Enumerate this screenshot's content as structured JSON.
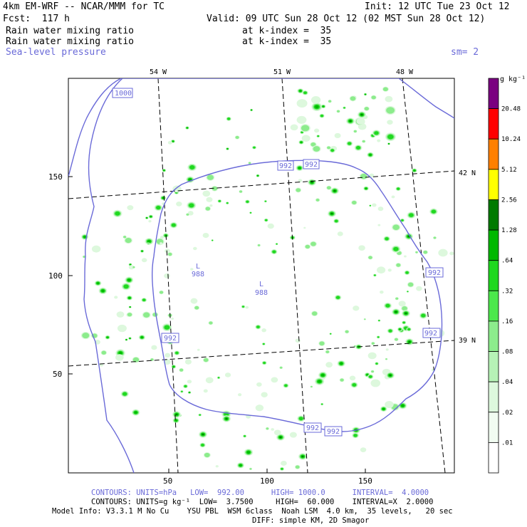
{
  "header": {
    "model": "4km EM-WRF -- NCAR/MMM for TC",
    "init": "Init: 12 UTC Tue 23 Oct 12",
    "fcst": "Fcst:  117 h",
    "valid": "Valid: 09 UTC Sun 28 Oct 12 (02 MST Sun 28 Oct 12)",
    "field1": "Rain water mixing ratio",
    "field1_level": "at k-index =  35",
    "field2": "Rain water mixing ratio",
    "field2_level": "at k-index =  35",
    "field3": "Sea-level pressure",
    "smoothing": "sm= 2"
  },
  "map": {
    "x_ticks": [
      {
        "label": "50",
        "value": 50
      },
      {
        "label": "100",
        "value": 100
      },
      {
        "label": "150",
        "value": 150
      }
    ],
    "y_ticks": [
      {
        "label": "50",
        "value": 50
      },
      {
        "label": "100",
        "value": 100
      },
      {
        "label": "150",
        "value": 150
      }
    ],
    "x_range": [
      0,
      197
    ],
    "y_range": [
      0,
      197
    ],
    "lon_labels": [
      "54 W",
      "51 W",
      "48 W"
    ],
    "lat_labels": [
      "42 N",
      "39 N"
    ],
    "pressure_labels": [
      "1000",
      "992",
      "992",
      "992",
      "992",
      "992",
      "992",
      "992"
    ],
    "lows": [
      {
        "mark": "L",
        "value": "988"
      },
      {
        "mark": "L",
        "value": "988"
      }
    ]
  },
  "colorbar": {
    "unit": "g kg⁻¹",
    "levels": [
      "20.48",
      "10.24",
      "5.12",
      "2.56",
      "1.28",
      ".64",
      ".32",
      ".16",
      ".08",
      ".04",
      ".02",
      ".01"
    ],
    "colors": [
      "#7a0080",
      "#ff0000",
      "#ff8000",
      "#ffff00",
      "#007a00",
      "#00b800",
      "#1fd81f",
      "#4ce84c",
      "#8cec8c",
      "#b6f2b6",
      "#ddf8dd",
      "#f1fcf1",
      "#ffffff"
    ]
  },
  "footer": {
    "contours1": "CONTOURS: UNITS=hPa   LOW=  992.00      HIGH= 1000.0      INTERVAL=  4.0000",
    "contours2": "CONTOURS: UNITS=g kg⁻¹  LOW=  3.7500     HIGH=  60.000    INTERVAL=X  2.0000",
    "model_info": "Model Info: V3.3.1 M No Cu    YSU PBL  WSM 6class  Noah LSM  4.0 km,  35 levels,   20 sec",
    "diff": "DIFF: simple KM, 2D Smagor"
  }
}
